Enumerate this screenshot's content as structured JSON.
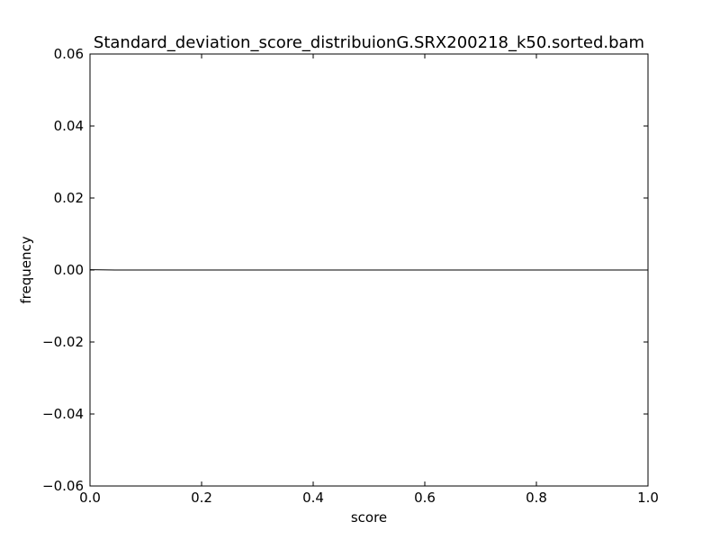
{
  "chart_data": {
    "type": "line",
    "title": "Standard_deviation_score_distribuionG.SRX200218_k50.sorted.bam",
    "xlabel": "score",
    "ylabel": "frequency",
    "xlim": [
      0.0,
      1.0
    ],
    "ylim": [
      -0.06,
      0.06
    ],
    "x_ticks": [
      0.0,
      0.2,
      0.4,
      0.6,
      0.8,
      1.0
    ],
    "x_tick_labels": [
      "0.0",
      "0.2",
      "0.4",
      "0.6",
      "0.8",
      "1.0"
    ],
    "y_ticks": [
      0.06,
      0.04,
      0.02,
      0.0,
      -0.02,
      -0.04,
      -0.06
    ],
    "y_tick_labels": [
      "0.06",
      "0.04",
      "0.02",
      "0.00",
      "−0.02",
      "−0.04",
      "−0.06"
    ],
    "grid": false,
    "series": [
      {
        "color": "#000000",
        "x": [
          0.0,
          0.05,
          1.0
        ],
        "y": [
          0.0001,
          0.0,
          0.0
        ]
      }
    ]
  }
}
